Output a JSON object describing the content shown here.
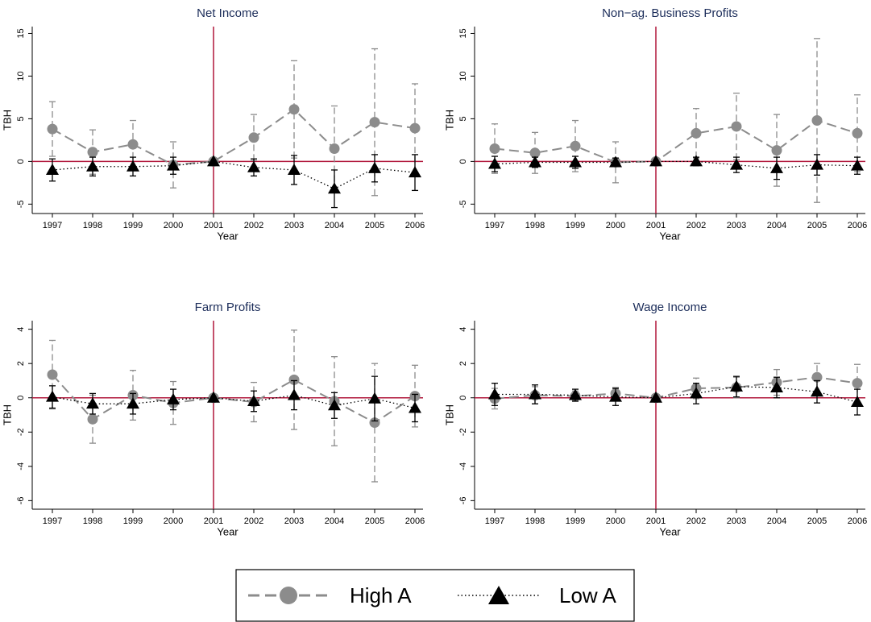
{
  "chart_data": [
    {
      "type": "errorbar-line",
      "title": "Net Income",
      "xlabel": "Year",
      "ylabel": "TBH",
      "x": [
        1997,
        1998,
        1999,
        2000,
        2001,
        2002,
        2003,
        2004,
        2005,
        2006
      ],
      "xlim": [
        1996.5,
        2006.2
      ],
      "xticks": [
        1997,
        1998,
        1999,
        2000,
        2001,
        2002,
        2003,
        2004,
        2005,
        2006
      ],
      "ylim": [
        -6.1,
        15.8
      ],
      "yticks": [
        -5,
        0,
        5,
        10,
        15
      ],
      "xline": 2001,
      "yline": 0,
      "series": [
        {
          "name": "High A",
          "color": "#8c8c8c",
          "line_style": "dash",
          "marker": "circle",
          "values": [
            3.8,
            1.1,
            2.0,
            -0.4,
            0,
            2.8,
            6.1,
            1.5,
            4.6,
            3.9
          ],
          "errors": [
            3.2,
            2.6,
            2.8,
            2.7,
            0,
            2.7,
            5.7,
            5.0,
            8.6,
            5.2
          ]
        },
        {
          "name": "Low A",
          "color": "#000000",
          "line_style": "dot",
          "marker": "triangle",
          "values": [
            -1.0,
            -0.6,
            -0.6,
            -0.5,
            0,
            -0.7,
            -1.0,
            -3.2,
            -0.8,
            -1.3
          ],
          "errors": [
            1.3,
            1.1,
            1.1,
            1.0,
            0,
            1.0,
            1.7,
            2.2,
            1.6,
            2.1
          ]
        }
      ]
    },
    {
      "type": "errorbar-line",
      "title": "Non−ag. Business Profits",
      "xlabel": "Year",
      "ylabel": "TBH",
      "x": [
        1997,
        1998,
        1999,
        2000,
        2001,
        2002,
        2003,
        2004,
        2005,
        2006
      ],
      "xlim": [
        1996.5,
        2006.2
      ],
      "xticks": [
        1997,
        1998,
        1999,
        2000,
        2001,
        2002,
        2003,
        2004,
        2005,
        2006
      ],
      "ylim": [
        -6.1,
        15.8
      ],
      "yticks": [
        -5,
        0,
        5,
        10,
        15
      ],
      "xline": 2001,
      "yline": 0,
      "series": [
        {
          "name": "High A",
          "color": "#8c8c8c",
          "line_style": "dash",
          "marker": "circle",
          "values": [
            1.5,
            1.0,
            1.8,
            -0.1,
            0,
            3.3,
            4.1,
            1.3,
            4.8,
            3.3
          ],
          "errors": [
            2.9,
            2.4,
            3.0,
            2.4,
            0,
            2.9,
            3.9,
            4.2,
            9.6,
            4.5
          ]
        },
        {
          "name": "Low A",
          "color": "#000000",
          "line_style": "dot",
          "marker": "triangle",
          "values": [
            -0.3,
            -0.1,
            -0.1,
            -0.1,
            0,
            0.0,
            -0.4,
            -0.8,
            -0.4,
            -0.5
          ],
          "errors": [
            0.9,
            0.6,
            0.7,
            0.5,
            0,
            0.5,
            0.9,
            1.3,
            1.2,
            1.0
          ]
        }
      ]
    },
    {
      "type": "errorbar-line",
      "title": "Farm Profits",
      "xlabel": "Year",
      "ylabel": "TBH",
      "x": [
        1997,
        1998,
        1999,
        2000,
        2001,
        2002,
        2003,
        2004,
        2005,
        2006
      ],
      "xlim": [
        1996.5,
        2006.2
      ],
      "xticks": [
        1997,
        1998,
        1999,
        2000,
        2001,
        2002,
        2003,
        2004,
        2005,
        2006
      ],
      "ylim": [
        -6.5,
        4.5
      ],
      "yticks": [
        -6,
        -4,
        -2,
        0,
        2,
        4
      ],
      "xline": 2001,
      "yline": 0,
      "series": [
        {
          "name": "High A",
          "color": "#8c8c8c",
          "line_style": "dash",
          "marker": "circle",
          "values": [
            1.35,
            -1.25,
            0.15,
            -0.3,
            0,
            -0.25,
            1.05,
            -0.2,
            -1.45,
            0.1
          ],
          "errors": [
            2.0,
            1.4,
            1.45,
            1.25,
            0,
            1.15,
            2.9,
            2.6,
            3.45,
            1.8
          ]
        },
        {
          "name": "Low A",
          "color": "#000000",
          "line_style": "dot",
          "marker": "triangle",
          "values": [
            0.05,
            -0.35,
            -0.35,
            -0.1,
            0,
            -0.2,
            0.15,
            -0.45,
            -0.05,
            -0.6
          ],
          "errors": [
            0.65,
            0.6,
            0.6,
            0.6,
            0,
            0.6,
            0.85,
            0.75,
            1.3,
            0.8
          ]
        }
      ]
    },
    {
      "type": "errorbar-line",
      "title": "Wage Income",
      "xlabel": "Year",
      "ylabel": "TBH",
      "x": [
        1997,
        1998,
        1999,
        2000,
        2001,
        2002,
        2003,
        2004,
        2005,
        2006
      ],
      "xlim": [
        1996.5,
        2006.2
      ],
      "xticks": [
        1997,
        1998,
        1999,
        2000,
        2001,
        2002,
        2003,
        2004,
        2005,
        2006
      ],
      "ylim": [
        -6.5,
        4.5
      ],
      "yticks": [
        -6,
        -4,
        -2,
        0,
        2,
        4
      ],
      "xline": 2001,
      "yline": 0,
      "series": [
        {
          "name": "High A",
          "color": "#8c8c8c",
          "line_style": "dash",
          "marker": "circle",
          "values": [
            -0.05,
            0.15,
            0.1,
            0.25,
            0,
            0.55,
            0.6,
            0.9,
            1.2,
            0.85
          ],
          "errors": [
            0.6,
            0.5,
            0.3,
            0.35,
            0,
            0.6,
            0.6,
            0.75,
            0.8,
            1.1
          ]
        },
        {
          "name": "Low A",
          "color": "#000000",
          "line_style": "dot",
          "marker": "triangle",
          "values": [
            0.2,
            0.2,
            0.15,
            0.05,
            0,
            0.25,
            0.65,
            0.6,
            0.35,
            -0.25
          ],
          "errors": [
            0.65,
            0.55,
            0.35,
            0.5,
            0,
            0.6,
            0.6,
            0.6,
            0.65,
            0.75
          ]
        }
      ]
    }
  ]
}
